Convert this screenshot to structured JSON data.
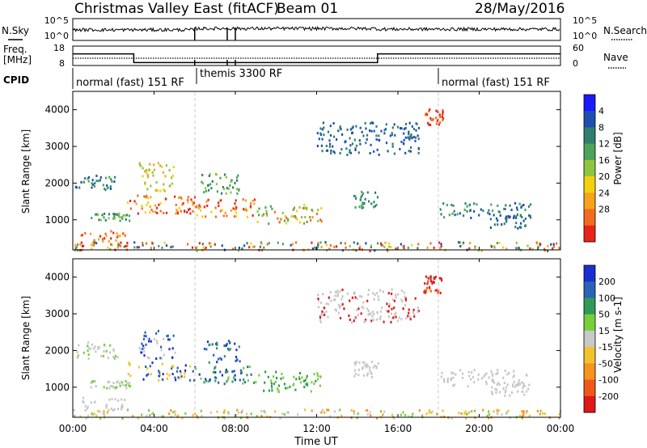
{
  "header": {
    "title": "Christmas Valley East (fitACF)",
    "beam": "Beam 01",
    "date": "28/May/2016"
  },
  "labels": {
    "nsky": "N.Sky",
    "nsearch": "N.Search",
    "freq_line1": "Freq.",
    "freq_line2": "[MHz]",
    "nave": "Nave",
    "cpid": "CPID",
    "xlabel": "Time UT"
  },
  "noise_panel": {
    "left_ticks": [
      "10^5",
      "10^0"
    ],
    "right_ticks": [
      "10^5",
      "10^0"
    ]
  },
  "freq_panel": {
    "left_ticks": [
      "18",
      "8"
    ],
    "right_ticks": [
      "60",
      "0"
    ]
  },
  "cpid_panel": {
    "segments": [
      {
        "label": "normal (fast) 151 RF",
        "start_hr": 0
      },
      {
        "label": "themis 3300 RF",
        "start_hr": 6
      },
      {
        "label": "normal (fast) 151 RF",
        "start_hr": 18
      }
    ]
  },
  "x_axis": {
    "ticks": [
      "00:00",
      "04:00",
      "08:00",
      "12:00",
      "16:00",
      "20:00",
      "00:00"
    ],
    "range_hours": [
      0,
      24
    ]
  },
  "chart_data": [
    {
      "type": "heatmap",
      "ylabel": "Slant Range [km]",
      "yticks": [
        "1000",
        "2000",
        "3000",
        "4000"
      ],
      "ylim": [
        180,
        4500
      ],
      "colorbar": {
        "label": "Power [dB]",
        "ticks": [
          "4",
          "8",
          "12",
          "16",
          "20",
          "24",
          "28"
        ],
        "range": [
          0,
          30
        ],
        "colors": [
          "#1a1aff",
          "#1e4fb0",
          "#2f7f6f",
          "#4ea35a",
          "#8ec63f",
          "#f3d10f",
          "#f7a21b",
          "#f26c1e",
          "#e8241a"
        ]
      }
    },
    {
      "type": "heatmap",
      "ylabel": "Slant Range [km]",
      "yticks": [
        "1000",
        "2000",
        "3000",
        "4000"
      ],
      "ylim": [
        180,
        4500
      ],
      "colorbar": {
        "label": "Velocity [m s-1]",
        "ticks": [
          "200",
          "100",
          "50",
          "15",
          "-15",
          "-50",
          "-100",
          "-200"
        ],
        "colors": [
          "#1a2fcf",
          "#2a63b8",
          "#2f9a5a",
          "#77cf3a",
          "#c8c8c8",
          "#f2c12c",
          "#f7941d",
          "#f0581b",
          "#e01818"
        ]
      }
    }
  ]
}
